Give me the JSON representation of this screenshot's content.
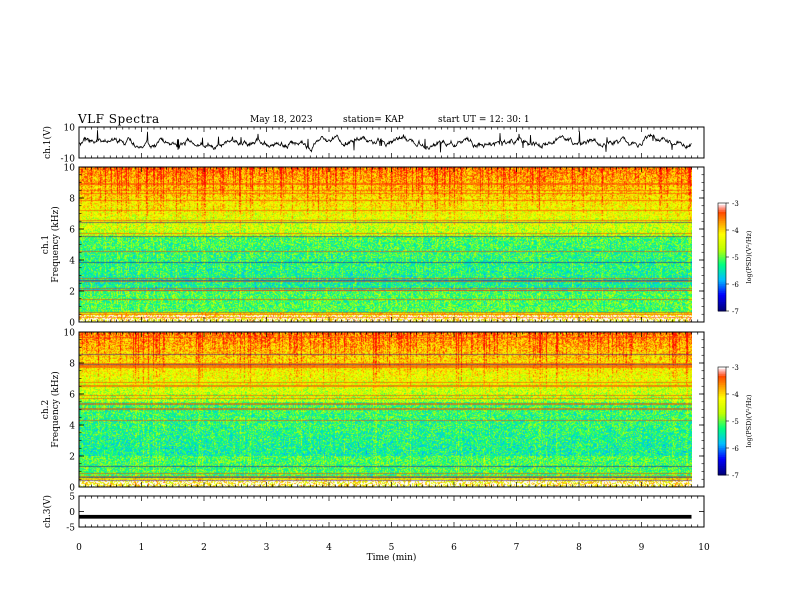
{
  "header": {
    "title": "VLF Spectra",
    "date": "May 18, 2023",
    "station": "station= KAP",
    "start": "start UT = 12: 30: 1"
  },
  "chart_data": [
    {
      "type": "line",
      "ylabel": "ch.1(V)",
      "ylim": [
        -10,
        10
      ],
      "yticks": [
        "10",
        "-10"
      ],
      "xlim": [
        0,
        10
      ],
      "note_series": "noisy waveform approx within -7..7 V"
    },
    {
      "type": "heatmap",
      "title": "ch.1",
      "ylabel": "Frequency (kHz)",
      "ylim": [
        0,
        10
      ],
      "yticks": [
        "0",
        "2",
        "4",
        "6",
        "8",
        "10"
      ],
      "xlim": [
        0,
        10
      ],
      "data_end_x": 9.8,
      "colorbar": {
        "label": "log(PSD)(V²/Hz)",
        "ticks": [
          "-3",
          "-4",
          "-5",
          "-6",
          "-7"
        ],
        "range": [
          -7,
          -3
        ]
      }
    },
    {
      "type": "heatmap",
      "title": "ch.2",
      "ylabel": "Frequency (kHz)",
      "ylim": [
        0,
        10
      ],
      "yticks": [
        "0",
        "2",
        "4",
        "6",
        "8",
        "10"
      ],
      "xlim": [
        0,
        10
      ],
      "data_end_x": 9.8,
      "colorbar": {
        "label": "log(PSD)(V²/Hz)",
        "ticks": [
          "-3",
          "-4",
          "-5",
          "-6",
          "-7"
        ],
        "range": [
          -7,
          -3
        ]
      }
    },
    {
      "type": "line",
      "ylabel": "ch.3(V)",
      "ylim": [
        -5,
        5
      ],
      "yticks": [
        "5",
        "0",
        "-5"
      ],
      "xlim": [
        0,
        10
      ],
      "xlabel": "Time (min)",
      "xticks": [
        "0",
        "1",
        "2",
        "3",
        "4",
        "5",
        "6",
        "7",
        "8",
        "9",
        "10"
      ],
      "note_series": "thick flat band near -1.5 V"
    }
  ],
  "colors": {
    "colormap": [
      "#00007f",
      "#0000ff",
      "#00bfff",
      "#00ff80",
      "#bfff00",
      "#ffff00",
      "#ff8000",
      "#ff0000",
      "#ffffff"
    ]
  }
}
